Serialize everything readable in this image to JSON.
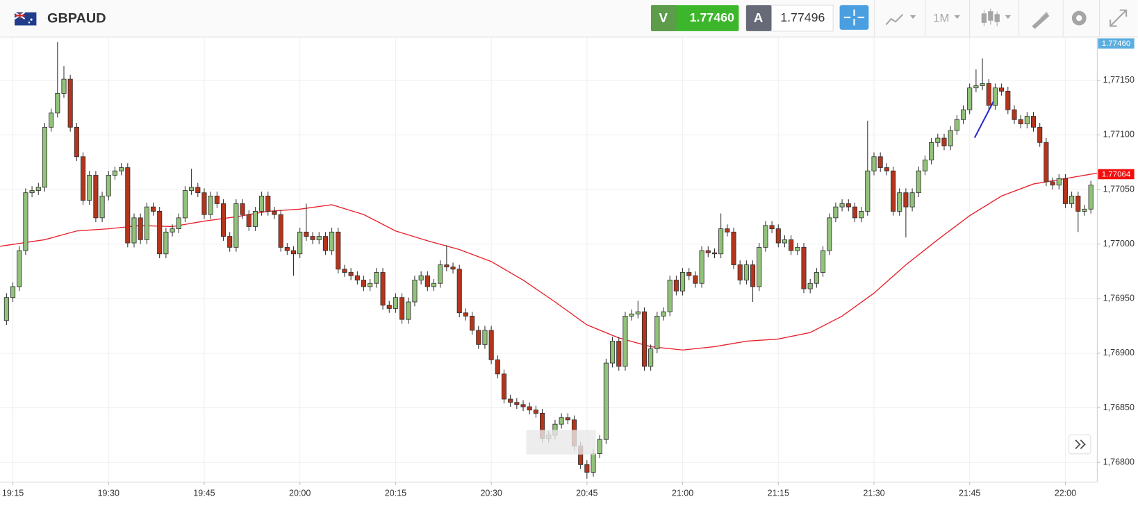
{
  "toolbar": {
    "symbol": "GBPAUD",
    "sell_label": "V",
    "sell_price": "1.77460",
    "buy_label": "A",
    "buy_price": "1.77496",
    "timeframe": "1M"
  },
  "chart_data": {
    "type": "candlestick",
    "x": [
      "19:14",
      "19:15",
      "19:16",
      "19:17",
      "19:18",
      "19:19",
      "19:20",
      "19:21",
      "19:22",
      "19:23",
      "19:24",
      "19:25",
      "19:26",
      "19:27",
      "19:28",
      "19:29",
      "19:30",
      "19:31",
      "19:32",
      "19:33",
      "19:34",
      "19:35",
      "19:36",
      "19:37",
      "19:38",
      "19:39",
      "19:40",
      "19:41",
      "19:42",
      "19:43",
      "19:44",
      "19:45",
      "19:46",
      "19:47",
      "19:48",
      "19:49",
      "19:50",
      "19:51",
      "19:52",
      "19:53",
      "19:54",
      "19:55",
      "19:56",
      "19:57",
      "19:58",
      "19:59",
      "20:00",
      "20:01",
      "20:02",
      "20:03",
      "20:04",
      "20:05",
      "20:06",
      "20:07",
      "20:08",
      "20:09",
      "20:10",
      "20:11",
      "20:12",
      "20:13",
      "20:14",
      "20:15",
      "20:16",
      "20:17",
      "20:18",
      "20:19",
      "20:20",
      "20:21",
      "20:22",
      "20:23",
      "20:24",
      "20:25",
      "20:26",
      "20:27",
      "20:28",
      "20:29",
      "20:30",
      "20:31",
      "20:32",
      "20:33",
      "20:34",
      "20:35",
      "20:36",
      "20:37",
      "20:38",
      "20:39",
      "20:40",
      "20:41",
      "20:42",
      "20:43",
      "20:44",
      "20:45",
      "20:46",
      "20:47",
      "20:48",
      "20:49",
      "20:50",
      "20:51",
      "20:52",
      "20:53",
      "20:54",
      "20:55",
      "20:56",
      "20:57",
      "20:58",
      "20:59",
      "21:00",
      "21:01",
      "21:02",
      "21:03",
      "21:04",
      "21:05",
      "21:06",
      "21:07",
      "21:08",
      "21:09",
      "21:10",
      "21:11",
      "21:12",
      "21:13",
      "21:14",
      "21:15",
      "21:16",
      "21:17",
      "21:18",
      "21:19",
      "21:20",
      "21:21",
      "21:22",
      "21:23",
      "21:24",
      "21:25",
      "21:26",
      "21:27",
      "21:28",
      "21:29",
      "21:30",
      "21:31",
      "21:32",
      "21:33",
      "21:34",
      "21:35",
      "21:36",
      "21:37",
      "21:38",
      "21:39",
      "21:40",
      "21:41",
      "21:42",
      "21:43",
      "21:44",
      "21:45",
      "21:46",
      "21:47",
      "21:48",
      "21:49",
      "21:50",
      "21:51",
      "21:52",
      "21:53",
      "21:54",
      "21:55",
      "21:56",
      "21:57",
      "21:58",
      "21:59",
      "22:00",
      "22:01",
      "22:02",
      "22:03",
      "22:04"
    ],
    "open": [
      1.7693,
      1.76951,
      1.76961,
      1.76994,
      1.77047,
      1.77049,
      1.77052,
      1.77107,
      1.7712,
      1.77138,
      1.77151,
      1.77107,
      1.7708,
      1.7704,
      1.77063,
      1.77024,
      1.77044,
      1.77063,
      1.77067,
      1.7707,
      1.77001,
      1.77024,
      1.77004,
      1.77034,
      1.7703,
      1.76991,
      1.77011,
      1.77014,
      1.77024,
      1.77049,
      1.77052,
      1.77047,
      1.77027,
      1.77044,
      1.77037,
      1.77007,
      1.76997,
      1.77037,
      1.77027,
      1.77016,
      1.7703,
      1.77044,
      1.7703,
      1.77027,
      1.76997,
      1.76994,
      1.76991,
      1.77011,
      1.77007,
      1.77004,
      1.77007,
      1.76994,
      1.77011,
      1.76977,
      1.76974,
      1.76971,
      1.76967,
      1.76961,
      1.76964,
      1.76974,
      1.76944,
      1.76941,
      1.76951,
      1.76931,
      1.76947,
      1.76967,
      1.76971,
      1.76961,
      1.76964,
      1.76981,
      1.76979,
      1.76977,
      1.76937,
      1.76934,
      1.76921,
      1.76908,
      1.76921,
      1.76894,
      1.76881,
      1.76858,
      1.76855,
      1.76853,
      1.76851,
      1.76848,
      1.76845,
      1.76822,
      1.76825,
      1.76835,
      1.76841,
      1.76839,
      1.76815,
      1.76798,
      1.76791,
      1.76808,
      1.76821,
      1.76891,
      1.76911,
      1.76888,
      1.76934,
      1.76936,
      1.76938,
      1.76888,
      1.76904,
      1.76934,
      1.76938,
      1.76967,
      1.76957,
      1.76974,
      1.76971,
      1.76964,
      1.76994,
      1.76992,
      1.76991,
      1.77014,
      1.77011,
      1.76981,
      1.76967,
      1.76981,
      1.76961,
      1.76997,
      1.77017,
      1.77014,
      1.77001,
      1.77004,
      1.76994,
      1.76997,
      1.76959,
      1.76964,
      1.76974,
      1.76994,
      1.77024,
      1.77034,
      1.77037,
      1.77034,
      1.77024,
      1.7703,
      1.77067,
      1.7708,
      1.7707,
      1.77067,
      1.7703,
      1.77047,
      1.77034,
      1.77047,
      1.77067,
      1.77077,
      1.77093,
      1.77097,
      1.7709,
      1.77104,
      1.77114,
      1.77123,
      1.77143,
      1.77145,
      1.77147,
      1.77127,
      1.77143,
      1.7714,
      1.77123,
      1.77114,
      1.7711,
      1.77117,
      1.77107,
      1.77093,
      1.77057,
      1.77054,
      1.7706,
      1.77037,
      1.77044,
      1.7703,
      1.77032
    ],
    "high": [
      1.76955,
      1.76965,
      1.76998,
      1.77051,
      1.77053,
      1.77056,
      1.77111,
      1.77124,
      1.77185,
      1.77163,
      1.77155,
      1.77111,
      1.77084,
      1.77067,
      1.77067,
      1.77048,
      1.77067,
      1.77071,
      1.77074,
      1.77074,
      1.77028,
      1.77028,
      1.77038,
      1.77038,
      1.77034,
      1.77015,
      1.77018,
      1.77028,
      1.77053,
      1.77069,
      1.77056,
      1.77051,
      1.77048,
      1.77048,
      1.77041,
      1.77011,
      1.77041,
      1.77041,
      1.77031,
      1.77034,
      1.77048,
      1.77048,
      1.77034,
      1.77031,
      1.77001,
      1.76998,
      1.77015,
      1.77037,
      1.77011,
      1.77011,
      1.77011,
      1.77015,
      1.77015,
      1.76981,
      1.76978,
      1.76975,
      1.76971,
      1.76968,
      1.76978,
      1.76978,
      1.76948,
      1.76955,
      1.76955,
      1.76951,
      1.76971,
      1.76975,
      1.76975,
      1.76968,
      1.76985,
      1.76999,
      1.76983,
      1.76981,
      1.76941,
      1.76938,
      1.76925,
      1.76925,
      1.76925,
      1.76898,
      1.76885,
      1.76862,
      1.76859,
      1.76857,
      1.76855,
      1.76852,
      1.76849,
      1.76829,
      1.76839,
      1.76845,
      1.76845,
      1.76843,
      1.76819,
      1.76802,
      1.76812,
      1.76825,
      1.76895,
      1.76915,
      1.76915,
      1.76938,
      1.7694,
      1.76948,
      1.76942,
      1.76908,
      1.76938,
      1.76942,
      1.76971,
      1.76971,
      1.76978,
      1.76978,
      1.76975,
      1.76998,
      1.76998,
      1.76996,
      1.77028,
      1.77018,
      1.77015,
      1.76985,
      1.76985,
      1.76985,
      1.77001,
      1.77021,
      1.77021,
      1.77018,
      1.77008,
      1.77008,
      1.77001,
      1.77001,
      1.76968,
      1.76978,
      1.76998,
      1.77028,
      1.77038,
      1.77041,
      1.77041,
      1.77038,
      1.77034,
      1.77113,
      1.77084,
      1.77084,
      1.77074,
      1.77071,
      1.77051,
      1.77051,
      1.77051,
      1.77071,
      1.77081,
      1.77097,
      1.77101,
      1.77101,
      1.77108,
      1.77118,
      1.77127,
      1.77147,
      1.7716,
      1.7717,
      1.77151,
      1.77147,
      1.77147,
      1.77144,
      1.77127,
      1.77118,
      1.77121,
      1.77121,
      1.77111,
      1.77097,
      1.77061,
      1.77064,
      1.77064,
      1.77048,
      1.77048,
      1.77036,
      1.77058
    ],
    "low": [
      1.76926,
      1.76947,
      1.76957,
      1.7699,
      1.77043,
      1.77045,
      1.77048,
      1.77103,
      1.77116,
      1.77134,
      1.77103,
      1.77076,
      1.77036,
      1.77036,
      1.7702,
      1.7702,
      1.7704,
      1.77059,
      1.77063,
      1.76997,
      1.76997,
      1.77,
      1.77,
      1.77026,
      1.76987,
      1.76987,
      1.77007,
      1.7701,
      1.7702,
      1.77045,
      1.77043,
      1.77023,
      1.77023,
      1.77033,
      1.77003,
      1.76993,
      1.76993,
      1.77023,
      1.77012,
      1.77012,
      1.77026,
      1.77026,
      1.77023,
      1.76993,
      1.7699,
      1.76971,
      1.76987,
      1.77003,
      1.77,
      1.77,
      1.7699,
      1.7699,
      1.76973,
      1.7697,
      1.76967,
      1.76963,
      1.76957,
      1.76957,
      1.7696,
      1.7694,
      1.76937,
      1.76937,
      1.76927,
      1.76927,
      1.76943,
      1.76963,
      1.76957,
      1.76957,
      1.7696,
      1.76975,
      1.76973,
      1.76933,
      1.7693,
      1.76917,
      1.76904,
      1.76904,
      1.7689,
      1.76877,
      1.76854,
      1.76851,
      1.76849,
      1.76847,
      1.76844,
      1.76841,
      1.76818,
      1.76818,
      1.76821,
      1.76831,
      1.76835,
      1.76811,
      1.76794,
      1.76785,
      1.76787,
      1.76804,
      1.76817,
      1.76887,
      1.76884,
      1.76884,
      1.7693,
      1.76932,
      1.76884,
      1.76884,
      1.769,
      1.7693,
      1.76934,
      1.76953,
      1.76953,
      1.76967,
      1.7696,
      1.7696,
      1.76988,
      1.76987,
      1.76987,
      1.77007,
      1.76977,
      1.76963,
      1.76963,
      1.76947,
      1.76957,
      1.76993,
      1.7701,
      1.76997,
      1.76997,
      1.7699,
      1.7699,
      1.76955,
      1.76955,
      1.7696,
      1.7697,
      1.7699,
      1.7702,
      1.7703,
      1.7703,
      1.7702,
      1.7702,
      1.77026,
      1.77063,
      1.77066,
      1.77063,
      1.77026,
      1.77026,
      1.77006,
      1.7703,
      1.77043,
      1.77063,
      1.77073,
      1.77089,
      1.77086,
      1.77086,
      1.771,
      1.7711,
      1.77119,
      1.77139,
      1.77141,
      1.77123,
      1.77123,
      1.77136,
      1.77119,
      1.7711,
      1.77106,
      1.77106,
      1.77103,
      1.77089,
      1.77053,
      1.7705,
      1.7705,
      1.77033,
      1.77033,
      1.77011,
      1.77026,
      1.77028
    ],
    "close": [
      1.76951,
      1.76961,
      1.76994,
      1.77047,
      1.77049,
      1.77052,
      1.77107,
      1.7712,
      1.77138,
      1.77151,
      1.77107,
      1.7708,
      1.7704,
      1.77063,
      1.77024,
      1.77044,
      1.77063,
      1.77067,
      1.7707,
      1.77001,
      1.77024,
      1.77004,
      1.77034,
      1.7703,
      1.76991,
      1.77011,
      1.77014,
      1.77024,
      1.77049,
      1.77052,
      1.77047,
      1.77027,
      1.77044,
      1.77037,
      1.77007,
      1.76997,
      1.77037,
      1.77027,
      1.77016,
      1.7703,
      1.77044,
      1.7703,
      1.77027,
      1.76997,
      1.76994,
      1.76991,
      1.77011,
      1.77007,
      1.77004,
      1.77007,
      1.76994,
      1.77011,
      1.76977,
      1.76974,
      1.76971,
      1.76967,
      1.76961,
      1.76964,
      1.76974,
      1.76944,
      1.76941,
      1.76951,
      1.76931,
      1.76947,
      1.76967,
      1.76971,
      1.76961,
      1.76964,
      1.76981,
      1.76979,
      1.76977,
      1.76937,
      1.76934,
      1.76921,
      1.76908,
      1.76921,
      1.76894,
      1.76881,
      1.76858,
      1.76855,
      1.76853,
      1.76851,
      1.76848,
      1.76845,
      1.76822,
      1.76825,
      1.76835,
      1.76841,
      1.76839,
      1.76815,
      1.76798,
      1.76791,
      1.76808,
      1.76821,
      1.76891,
      1.76911,
      1.76888,
      1.76934,
      1.76936,
      1.76938,
      1.76888,
      1.76904,
      1.76934,
      1.76938,
      1.76967,
      1.76957,
      1.76974,
      1.76971,
      1.76964,
      1.76994,
      1.76992,
      1.76991,
      1.77014,
      1.77011,
      1.76981,
      1.76967,
      1.76981,
      1.76961,
      1.76997,
      1.77017,
      1.77014,
      1.77001,
      1.77004,
      1.76994,
      1.76997,
      1.76959,
      1.76964,
      1.76974,
      1.76994,
      1.77024,
      1.77034,
      1.77037,
      1.77034,
      1.77024,
      1.7703,
      1.77067,
      1.7708,
      1.7707,
      1.77067,
      1.7703,
      1.77047,
      1.77034,
      1.77047,
      1.77067,
      1.77077,
      1.77093,
      1.77097,
      1.7709,
      1.77104,
      1.77114,
      1.77123,
      1.77143,
      1.77145,
      1.77147,
      1.77127,
      1.77143,
      1.7714,
      1.77123,
      1.77114,
      1.7711,
      1.77117,
      1.77107,
      1.77093,
      1.77057,
      1.77054,
      1.7706,
      1.77037,
      1.77044,
      1.7703,
      1.77032,
      1.77054
    ],
    "up_color": "#92c27a",
    "down_color": "#b5351c",
    "edge_color": "#2f2f2f",
    "overlay": {
      "type": "line",
      "color": "#e8202a",
      "x": [
        "19:13",
        "19:20",
        "19:25",
        "19:30",
        "19:35",
        "19:40",
        "19:45",
        "19:50",
        "19:55",
        "20:00",
        "20:05",
        "20:10",
        "20:15",
        "20:20",
        "20:25",
        "20:30",
        "20:35",
        "20:40",
        "20:45",
        "20:50",
        "20:55",
        "21:00",
        "21:05",
        "21:10",
        "21:15",
        "21:20",
        "21:25",
        "21:30",
        "21:35",
        "21:40",
        "21:45",
        "21:50",
        "21:55",
        "22:00",
        "22:05"
      ],
      "values": [
        1.76998,
        1.77004,
        1.77012,
        1.77014,
        1.77017,
        1.77016,
        1.77021,
        1.77025,
        1.7703,
        1.77032,
        1.77036,
        1.77027,
        1.77012,
        1.77003,
        1.76995,
        1.76984,
        1.76967,
        1.76947,
        1.76926,
        1.76914,
        1.76906,
        1.76903,
        1.76906,
        1.76911,
        1.76913,
        1.76919,
        1.76934,
        1.76955,
        1.76981,
        1.77004,
        1.77026,
        1.77044,
        1.77055,
        1.7706,
        1.77065
      ]
    },
    "xlim": [
      "19:13",
      "22:05"
    ],
    "xticks": [
      "19:15",
      "19:30",
      "19:45",
      "20:00",
      "20:15",
      "20:30",
      "20:45",
      "21:00",
      "21:15",
      "21:30",
      "21:45",
      "22:00"
    ],
    "ylim": [
      1.76782,
      1.77189
    ],
    "yticks": [
      {
        "value": 1.768,
        "label": "1,76800"
      },
      {
        "value": 1.7685,
        "label": "1,76850"
      },
      {
        "value": 1.769,
        "label": "1,76900"
      },
      {
        "value": 1.7695,
        "label": "1,76950"
      },
      {
        "value": 1.77,
        "label": "1,77000"
      },
      {
        "value": 1.7705,
        "label": "1,77050"
      },
      {
        "value": 1.771,
        "label": "1,77100"
      },
      {
        "value": 1.7715,
        "label": "1,77150"
      }
    ],
    "grid": true,
    "price_tags": [
      {
        "value": 1.7746,
        "label": "1.77460",
        "color": "#5aaee0"
      },
      {
        "value": 1.77064,
        "label": "1.77064",
        "color": "#f40f0f"
      }
    ]
  }
}
